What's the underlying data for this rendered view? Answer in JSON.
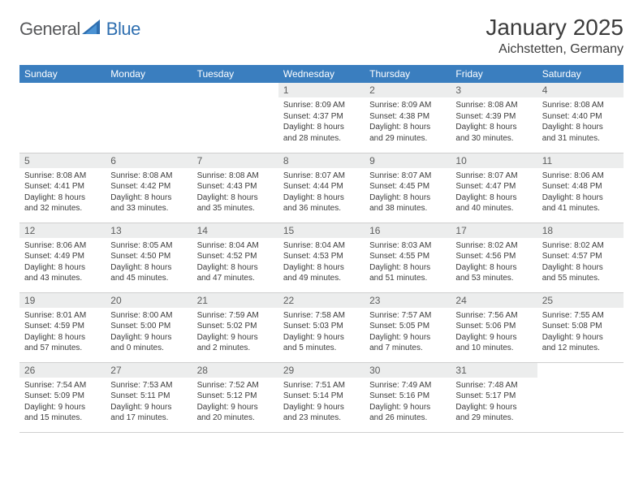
{
  "logo": {
    "word1": "General",
    "word2": "Blue"
  },
  "title": "January 2025",
  "subtitle": "Aichstetten, Germany",
  "colors": {
    "header_bg": "#3a7ebf",
    "header_text": "#ffffff",
    "daynum_bg": "#eceded",
    "daynum_text": "#5d5e5e",
    "body_text": "#3b3b3b",
    "rule": "#cfcfcf",
    "logo_gray": "#58595b",
    "logo_blue": "#2f6fb0"
  },
  "weekdays": [
    "Sunday",
    "Monday",
    "Tuesday",
    "Wednesday",
    "Thursday",
    "Friday",
    "Saturday"
  ],
  "weeks": [
    [
      null,
      null,
      null,
      {
        "n": "1",
        "sr": "8:09 AM",
        "ss": "4:37 PM",
        "dh": "8",
        "dm": "28"
      },
      {
        "n": "2",
        "sr": "8:09 AM",
        "ss": "4:38 PM",
        "dh": "8",
        "dm": "29"
      },
      {
        "n": "3",
        "sr": "8:08 AM",
        "ss": "4:39 PM",
        "dh": "8",
        "dm": "30"
      },
      {
        "n": "4",
        "sr": "8:08 AM",
        "ss": "4:40 PM",
        "dh": "8",
        "dm": "31"
      }
    ],
    [
      {
        "n": "5",
        "sr": "8:08 AM",
        "ss": "4:41 PM",
        "dh": "8",
        "dm": "32"
      },
      {
        "n": "6",
        "sr": "8:08 AM",
        "ss": "4:42 PM",
        "dh": "8",
        "dm": "33"
      },
      {
        "n": "7",
        "sr": "8:08 AM",
        "ss": "4:43 PM",
        "dh": "8",
        "dm": "35"
      },
      {
        "n": "8",
        "sr": "8:07 AM",
        "ss": "4:44 PM",
        "dh": "8",
        "dm": "36"
      },
      {
        "n": "9",
        "sr": "8:07 AM",
        "ss": "4:45 PM",
        "dh": "8",
        "dm": "38"
      },
      {
        "n": "10",
        "sr": "8:07 AM",
        "ss": "4:47 PM",
        "dh": "8",
        "dm": "40"
      },
      {
        "n": "11",
        "sr": "8:06 AM",
        "ss": "4:48 PM",
        "dh": "8",
        "dm": "41"
      }
    ],
    [
      {
        "n": "12",
        "sr": "8:06 AM",
        "ss": "4:49 PM",
        "dh": "8",
        "dm": "43"
      },
      {
        "n": "13",
        "sr": "8:05 AM",
        "ss": "4:50 PM",
        "dh": "8",
        "dm": "45"
      },
      {
        "n": "14",
        "sr": "8:04 AM",
        "ss": "4:52 PM",
        "dh": "8",
        "dm": "47"
      },
      {
        "n": "15",
        "sr": "8:04 AM",
        "ss": "4:53 PM",
        "dh": "8",
        "dm": "49"
      },
      {
        "n": "16",
        "sr": "8:03 AM",
        "ss": "4:55 PM",
        "dh": "8",
        "dm": "51"
      },
      {
        "n": "17",
        "sr": "8:02 AM",
        "ss": "4:56 PM",
        "dh": "8",
        "dm": "53"
      },
      {
        "n": "18",
        "sr": "8:02 AM",
        "ss": "4:57 PM",
        "dh": "8",
        "dm": "55"
      }
    ],
    [
      {
        "n": "19",
        "sr": "8:01 AM",
        "ss": "4:59 PM",
        "dh": "8",
        "dm": "57"
      },
      {
        "n": "20",
        "sr": "8:00 AM",
        "ss": "5:00 PM",
        "dh": "9",
        "dm": "0"
      },
      {
        "n": "21",
        "sr": "7:59 AM",
        "ss": "5:02 PM",
        "dh": "9",
        "dm": "2"
      },
      {
        "n": "22",
        "sr": "7:58 AM",
        "ss": "5:03 PM",
        "dh": "9",
        "dm": "5"
      },
      {
        "n": "23",
        "sr": "7:57 AM",
        "ss": "5:05 PM",
        "dh": "9",
        "dm": "7"
      },
      {
        "n": "24",
        "sr": "7:56 AM",
        "ss": "5:06 PM",
        "dh": "9",
        "dm": "10"
      },
      {
        "n": "25",
        "sr": "7:55 AM",
        "ss": "5:08 PM",
        "dh": "9",
        "dm": "12"
      }
    ],
    [
      {
        "n": "26",
        "sr": "7:54 AM",
        "ss": "5:09 PM",
        "dh": "9",
        "dm": "15"
      },
      {
        "n": "27",
        "sr": "7:53 AM",
        "ss": "5:11 PM",
        "dh": "9",
        "dm": "17"
      },
      {
        "n": "28",
        "sr": "7:52 AM",
        "ss": "5:12 PM",
        "dh": "9",
        "dm": "20"
      },
      {
        "n": "29",
        "sr": "7:51 AM",
        "ss": "5:14 PM",
        "dh": "9",
        "dm": "23"
      },
      {
        "n": "30",
        "sr": "7:49 AM",
        "ss": "5:16 PM",
        "dh": "9",
        "dm": "26"
      },
      {
        "n": "31",
        "sr": "7:48 AM",
        "ss": "5:17 PM",
        "dh": "9",
        "dm": "29"
      },
      null
    ]
  ]
}
